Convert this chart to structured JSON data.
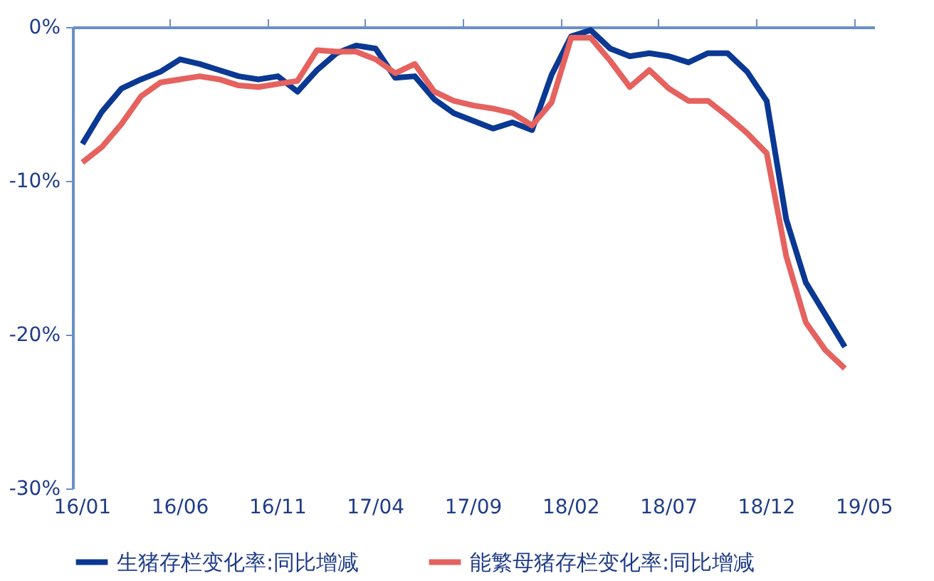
{
  "chart_data": {
    "type": "line",
    "categories": [
      "16/01",
      null,
      null,
      null,
      null,
      "16/06",
      null,
      null,
      null,
      null,
      "16/11",
      null,
      null,
      null,
      null,
      "17/04",
      null,
      null,
      null,
      null,
      "17/09",
      null,
      null,
      null,
      null,
      "18/02",
      null,
      null,
      null,
      null,
      "18/07",
      null,
      null,
      null,
      null,
      "18/12",
      null,
      null,
      null,
      null,
      "19/05"
    ],
    "series": [
      {
        "name": "生猪存栏变化率:同比增减",
        "color": "#0a3893",
        "values": [
          -7.6,
          -5.5,
          -4.0,
          -3.4,
          -2.9,
          -2.1,
          -2.4,
          -2.8,
          -3.2,
          -3.4,
          -3.2,
          -4.2,
          -2.8,
          -1.7,
          -1.2,
          -1.4,
          -3.3,
          -3.2,
          -4.7,
          -5.6,
          -6.1,
          -6.6,
          -6.2,
          -6.7,
          -3.1,
          -0.6,
          -0.2,
          -1.4,
          -1.9,
          -1.7,
          -1.9,
          -2.3,
          -1.7,
          -1.7,
          -2.9,
          -4.8,
          -12.5,
          -16.6,
          -18.7,
          -20.8,
          null
        ]
      },
      {
        "name": "能繁母猪存栏变化率:同比增减",
        "color": "#e5625f",
        "values": [
          -8.8,
          -7.8,
          -6.3,
          -4.5,
          -3.6,
          -3.4,
          -3.2,
          -3.4,
          -3.8,
          -3.9,
          -3.7,
          -3.5,
          -1.5,
          -1.6,
          -1.6,
          -2.1,
          -3.0,
          -2.4,
          -4.2,
          -4.8,
          -5.1,
          -5.3,
          -5.6,
          -6.4,
          -4.9,
          -0.7,
          -0.7,
          -2.2,
          -3.9,
          -2.8,
          -4.0,
          -4.8,
          -4.8,
          -5.8,
          -6.9,
          -8.2,
          -14.9,
          -19.2,
          -21.0,
          -22.2,
          null
        ]
      }
    ],
    "ylim": [
      -30,
      0
    ],
    "yticks": [
      {
        "value": 0,
        "label": "0%"
      },
      {
        "value": -10,
        "label": "-10%"
      },
      {
        "value": -20,
        "label": "-20%"
      },
      {
        "value": -30,
        "label": "-30%"
      }
    ],
    "grid": false,
    "legend": "bottom",
    "marker": "none",
    "line_style": "solid"
  }
}
